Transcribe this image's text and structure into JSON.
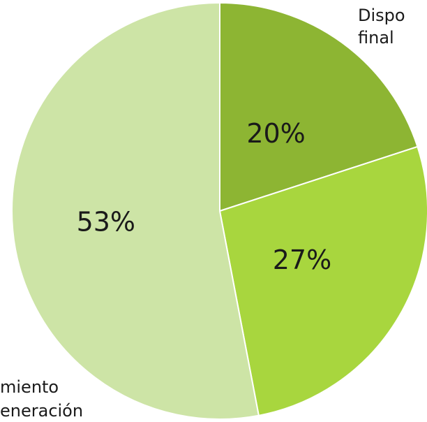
{
  "chart_data": {
    "type": "pie",
    "categories": [
      "Disposición final",
      "",
      "Tratamiento y/o generación"
    ],
    "category_label_visible": [
      [
        "Dispo",
        "final"
      ],
      [],
      [
        "miento",
        "eneración"
      ]
    ],
    "values": [
      20,
      27,
      53
    ],
    "data_labels": [
      "20%",
      "27%",
      "53%"
    ],
    "colors": [
      "#8db533",
      "#a8d63e",
      "#cde4a6"
    ],
    "start_angle_deg": 0,
    "direction": "clockwise",
    "title": "",
    "legend": "none"
  }
}
